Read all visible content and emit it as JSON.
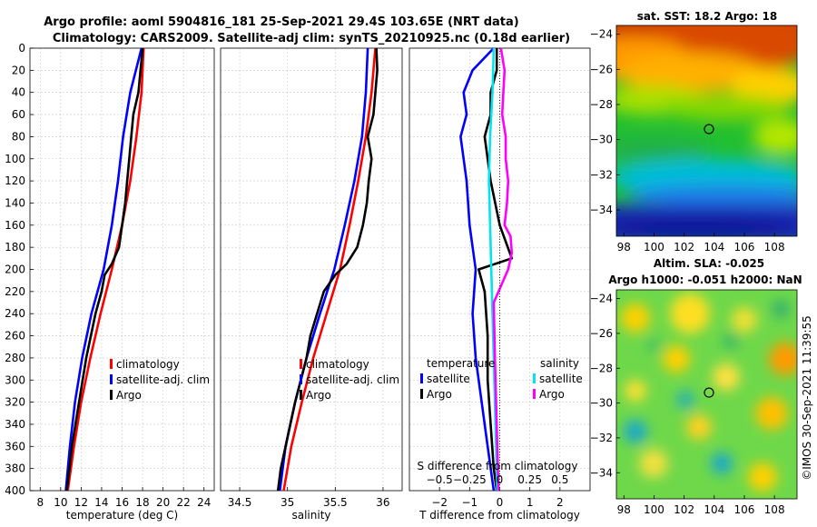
{
  "header": {
    "line1": "Argo profile: aoml 5904816_181 25-Sep-2021 29.4S 103.65E (NRT data)",
    "line2": "Climatology: CARS2009. Satellite-adj clim: synTS_20210925.nc (0.18d earlier)"
  },
  "colors": {
    "climatology": "#ff0000",
    "satellite": "#0000ff",
    "argo": "#000000",
    "sal_satellite": "#00e5ee",
    "sal_argo": "#ff00ff"
  },
  "chart_data": [
    {
      "id": "temperature-profile",
      "type": "line",
      "xlabel": "temperature (deg C)",
      "ylabel": "",
      "xlim": [
        7,
        25
      ],
      "ylim": [
        400,
        0
      ],
      "xticks": [
        8,
        10,
        12,
        14,
        16,
        18,
        20,
        22,
        24
      ],
      "yticks": [
        0,
        20,
        40,
        60,
        80,
        100,
        120,
        140,
        160,
        180,
        200,
        220,
        240,
        260,
        280,
        300,
        320,
        340,
        360,
        380,
        400
      ],
      "legend": [
        "climatology",
        "satellite-adj. clim",
        "Argo"
      ],
      "series": [
        {
          "name": "climatology",
          "color": "#ff0000",
          "depth": [
            0,
            40,
            80,
            120,
            160,
            200,
            240,
            280,
            320,
            360,
            400
          ],
          "values": [
            18.1,
            17.9,
            17.4,
            16.8,
            16.0,
            15.0,
            13.9,
            12.9,
            12.0,
            11.3,
            10.7
          ]
        },
        {
          "name": "satellite-adj. clim",
          "color": "#0000ff",
          "depth": [
            0,
            40,
            80,
            120,
            160,
            200,
            240,
            280,
            320,
            360,
            400
          ],
          "values": [
            17.9,
            16.8,
            16.1,
            15.6,
            15.0,
            14.2,
            13.0,
            12.1,
            11.4,
            10.9,
            10.5
          ]
        },
        {
          "name": "Argo",
          "color": "#000000",
          "depth": [
            0,
            20,
            40,
            60,
            80,
            100,
            120,
            140,
            160,
            180,
            195,
            205,
            220,
            240,
            280,
            320,
            360,
            400
          ],
          "values": [
            18.0,
            17.8,
            17.6,
            17.1,
            16.9,
            16.7,
            16.5,
            16.3,
            16.0,
            15.7,
            15.0,
            14.3,
            14.0,
            13.4,
            12.5,
            11.8,
            11.1,
            10.6
          ]
        }
      ]
    },
    {
      "id": "salinity-profile",
      "type": "line",
      "xlabel": "salinity",
      "ylabel": "",
      "xlim": [
        34.3,
        36.2
      ],
      "ylim": [
        400,
        0
      ],
      "xticks": [
        34.5,
        35,
        35.5,
        36
      ],
      "legend": [
        "climatology",
        "satellite-adj. clim",
        "Argo"
      ],
      "series": [
        {
          "name": "climatology",
          "color": "#ff0000",
          "depth": [
            0,
            40,
            80,
            120,
            160,
            200,
            240,
            280,
            320,
            360,
            400
          ],
          "values": [
            35.92,
            35.88,
            35.82,
            35.74,
            35.65,
            35.55,
            35.41,
            35.27,
            35.15,
            35.04,
            34.96
          ]
        },
        {
          "name": "satellite-adj. clim",
          "color": "#0000ff",
          "depth": [
            0,
            40,
            80,
            120,
            160,
            200,
            240,
            280,
            320,
            360,
            400
          ],
          "values": [
            35.84,
            35.82,
            35.78,
            35.7,
            35.6,
            35.49,
            35.34,
            35.2,
            35.08,
            34.98,
            34.92
          ]
        },
        {
          "name": "Argo",
          "color": "#000000",
          "depth": [
            0,
            20,
            40,
            60,
            80,
            100,
            120,
            140,
            160,
            180,
            195,
            205,
            220,
            240,
            260,
            280,
            300,
            320,
            340,
            360,
            380,
            400
          ],
          "values": [
            35.93,
            35.94,
            35.92,
            35.9,
            35.84,
            35.88,
            35.85,
            35.83,
            35.79,
            35.73,
            35.62,
            35.5,
            35.38,
            35.31,
            35.24,
            35.2,
            35.14,
            35.08,
            35.03,
            34.98,
            34.93,
            34.9
          ]
        }
      ]
    },
    {
      "id": "difference-profile",
      "type": "line",
      "xlabel": "T difference from climatology",
      "x2label": "S difference from climatology",
      "xlim": [
        -3,
        3
      ],
      "x2lim": [
        -0.75,
        0.75
      ],
      "ylim": [
        400,
        0
      ],
      "xticks": [
        -2,
        -1,
        0,
        1,
        2
      ],
      "x2ticks": [
        -0.5,
        -0.25,
        0,
        0.25,
        0.5
      ],
      "legend_temperature_title": "temperature",
      "legend_salinity_title": "salinity",
      "legend_temperature": [
        "satellite",
        "Argo"
      ],
      "legend_salinity": [
        "satellite",
        "Argo"
      ],
      "series": [
        {
          "name": "temperature satellite",
          "color": "#0000ff",
          "depth": [
            0,
            20,
            40,
            60,
            80,
            120,
            160,
            200,
            240,
            280,
            320,
            360,
            400
          ],
          "values": [
            -0.2,
            -0.9,
            -1.2,
            -1.1,
            -1.3,
            -1.1,
            -1.0,
            -0.8,
            -0.9,
            -0.8,
            -0.6,
            -0.4,
            -0.2
          ]
        },
        {
          "name": "temperature Argo",
          "color": "#000000",
          "depth": [
            0,
            20,
            40,
            60,
            80,
            120,
            160,
            190,
            200,
            220,
            260,
            300,
            340,
            380,
            400
          ],
          "values": [
            -0.1,
            -0.1,
            -0.3,
            -0.3,
            -0.5,
            -0.3,
            0.0,
            0.4,
            -0.7,
            -0.5,
            -0.4,
            -0.4,
            -0.3,
            -0.2,
            -0.1
          ]
        },
        {
          "name": "salinity satellite",
          "color": "#00e5ee",
          "depth": [
            0,
            40,
            80,
            120,
            160,
            200,
            240,
            280,
            320,
            360,
            400
          ],
          "values": [
            -0.05,
            -0.06,
            -0.08,
            -0.09,
            -0.08,
            -0.07,
            -0.06,
            -0.05,
            -0.04,
            -0.03,
            -0.02
          ]
        },
        {
          "name": "salinity Argo",
          "color": "#ff00ff",
          "depth": [
            0,
            20,
            40,
            60,
            80,
            100,
            120,
            140,
            160,
            170,
            185,
            200,
            230,
            280,
            320,
            360,
            400
          ],
          "values": [
            0.01,
            0.04,
            0.03,
            0.02,
            0.05,
            0.05,
            0.07,
            0.06,
            0.04,
            0.09,
            0.1,
            0.07,
            -0.05,
            -0.04,
            -0.03,
            -0.02,
            -0.01
          ]
        }
      ]
    },
    {
      "id": "sst-map",
      "type": "heatmap",
      "title": "sat. SST: 18.2 Argo: 18",
      "xlim": [
        97.5,
        109.5
      ],
      "ylim": [
        -35.5,
        -23.5
      ],
      "xticks": [
        98,
        100,
        102,
        104,
        106,
        108
      ],
      "yticks": [
        -24,
        -26,
        -28,
        -30,
        -32,
        -34
      ],
      "marker": {
        "lon": 103.65,
        "lat": -29.4
      }
    },
    {
      "id": "sla-map",
      "type": "heatmap",
      "title": "Altim. SLA: -0.025",
      "subtitle": "Argo h1000: -0.051 h2000: NaN",
      "xlim": [
        97.5,
        109.5
      ],
      "ylim": [
        -35.5,
        -23.5
      ],
      "xticks": [
        98,
        100,
        102,
        104,
        106,
        108
      ],
      "yticks": [
        -24,
        -26,
        -28,
        -30,
        -32,
        -34
      ],
      "marker": {
        "lon": 103.65,
        "lat": -29.4
      }
    }
  ],
  "credit": "©IMOS 30-Sep-2021 11:39:55"
}
